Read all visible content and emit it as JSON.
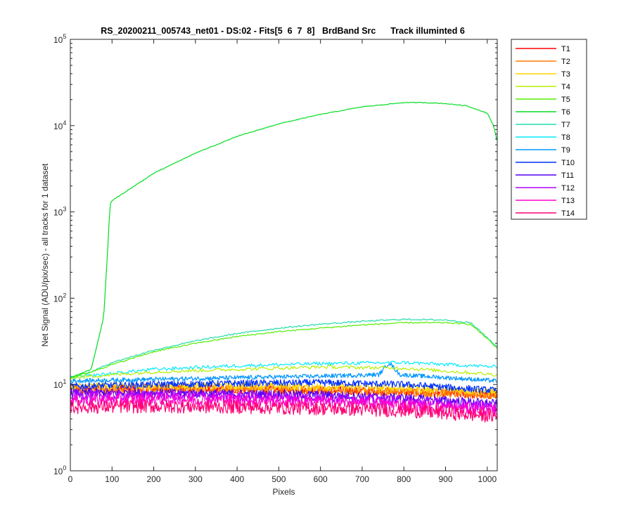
{
  "chart_data": {
    "type": "line",
    "title": "RS_20200211_005743_net01 - DS:02 - Fits[5  6  7  8]   BrdBand Src      Track illuminted 6",
    "xlabel": "Pixels",
    "ylabel": "Net Signal (ADU/pix/sec) - all tracks for 1 dataset",
    "xlim": [
      0,
      1024
    ],
    "ylim": [
      1,
      100000
    ],
    "y_scale": "log",
    "grid": false,
    "legend_position": "outside-right-top",
    "x_ticks": [
      0,
      100,
      200,
      300,
      400,
      500,
      600,
      700,
      800,
      900,
      1000
    ],
    "x_tick_labels": [
      "0",
      "100",
      "200",
      "300",
      "400",
      "500",
      "600",
      "700",
      "800",
      "900",
      "1000"
    ],
    "y_ticks": [
      1,
      10,
      100,
      1000,
      10000,
      100000
    ],
    "y_tick_labels": [
      {
        "base": "10",
        "exp": "0"
      },
      {
        "base": "10",
        "exp": "1"
      },
      {
        "base": "10",
        "exp": "2"
      },
      {
        "base": "10",
        "exp": "3"
      },
      {
        "base": "10",
        "exp": "4"
      },
      {
        "base": "10",
        "exp": "5"
      }
    ],
    "series": [
      {
        "name": "T1",
        "color": "#ff0000",
        "x": [
          0,
          200,
          400,
          600,
          800,
          1024
        ],
        "y": [
          9,
          9,
          8.8,
          8.6,
          8.2,
          7.5
        ]
      },
      {
        "name": "T2",
        "color": "#ff7f00",
        "x": [
          0,
          200,
          400,
          600,
          800,
          1024
        ],
        "y": [
          8.5,
          8.8,
          8.8,
          8.6,
          8.2,
          7.5
        ]
      },
      {
        "name": "T3",
        "color": "#ffd400",
        "x": [
          0,
          200,
          400,
          600,
          800,
          1024
        ],
        "y": [
          9.5,
          9.6,
          9.6,
          9.4,
          9.0,
          8.2
        ]
      },
      {
        "name": "T4",
        "color": "#b5f000",
        "x": [
          0,
          200,
          400,
          600,
          800,
          1024
        ],
        "y": [
          12,
          14,
          15,
          16,
          15.5,
          13
        ]
      },
      {
        "name": "T5",
        "color": "#55ee00",
        "x": [
          0,
          50,
          100,
          200,
          300,
          400,
          500,
          600,
          700,
          800,
          900,
          960,
          1000,
          1024
        ],
        "y": [
          12,
          14,
          17,
          24,
          30,
          36,
          41,
          45,
          49,
          52,
          52,
          50,
          34,
          26
        ]
      },
      {
        "name": "T6",
        "color": "#00dd22",
        "x": [
          0,
          50,
          80,
          90,
          95,
          100,
          200,
          300,
          400,
          500,
          600,
          700,
          800,
          850,
          900,
          950,
          1000,
          1015,
          1024
        ],
        "y": [
          12,
          15,
          60,
          400,
          1200,
          1350,
          2800,
          4800,
          7500,
          10500,
          13500,
          16500,
          18500,
          18500,
          18000,
          17000,
          14000,
          10000,
          6500
        ]
      },
      {
        "name": "T7",
        "color": "#22ddaa",
        "x": [
          0,
          50,
          100,
          200,
          300,
          400,
          500,
          600,
          700,
          800,
          900,
          960,
          1000,
          1024
        ],
        "y": [
          12,
          14,
          18,
          25,
          32,
          39,
          45,
          50,
          54,
          57,
          56,
          52,
          35,
          27
        ]
      },
      {
        "name": "T8",
        "color": "#00eaff",
        "x": [
          0,
          200,
          400,
          600,
          800,
          1024
        ],
        "y": [
          12,
          15,
          16.5,
          17.5,
          18,
          16
        ]
      },
      {
        "name": "T9",
        "color": "#0096ff",
        "x": [
          0,
          200,
          400,
          600,
          740,
          765,
          790,
          1024
        ],
        "y": [
          11,
          11.5,
          12,
          12.5,
          13,
          18,
          13,
          11
        ]
      },
      {
        "name": "T10",
        "color": "#0030ff",
        "x": [
          0,
          200,
          400,
          600,
          800,
          1024
        ],
        "y": [
          9.5,
          10,
          10.3,
          10.5,
          10,
          8.5
        ]
      },
      {
        "name": "T11",
        "color": "#5200ee",
        "x": [
          0,
          200,
          400,
          600,
          800,
          1024
        ],
        "y": [
          8,
          8,
          7.8,
          7.6,
          7.0,
          6.0
        ]
      },
      {
        "name": "T12",
        "color": "#b400ff",
        "x": [
          0,
          200,
          400,
          600,
          800,
          1024
        ],
        "y": [
          7.5,
          7.5,
          7.3,
          7.0,
          6.5,
          5.5
        ]
      },
      {
        "name": "T13",
        "color": "#ff00cc",
        "x": [
          0,
          200,
          400,
          600,
          800,
          1024
        ],
        "y": [
          6.5,
          6.8,
          6.6,
          6.3,
          5.8,
          5.0
        ]
      },
      {
        "name": "T14",
        "color": "#ff0077",
        "x": [
          0,
          200,
          400,
          600,
          800,
          1024
        ],
        "y": [
          5.5,
          5.6,
          5.5,
          5.3,
          5.0,
          4.3
        ]
      }
    ]
  }
}
